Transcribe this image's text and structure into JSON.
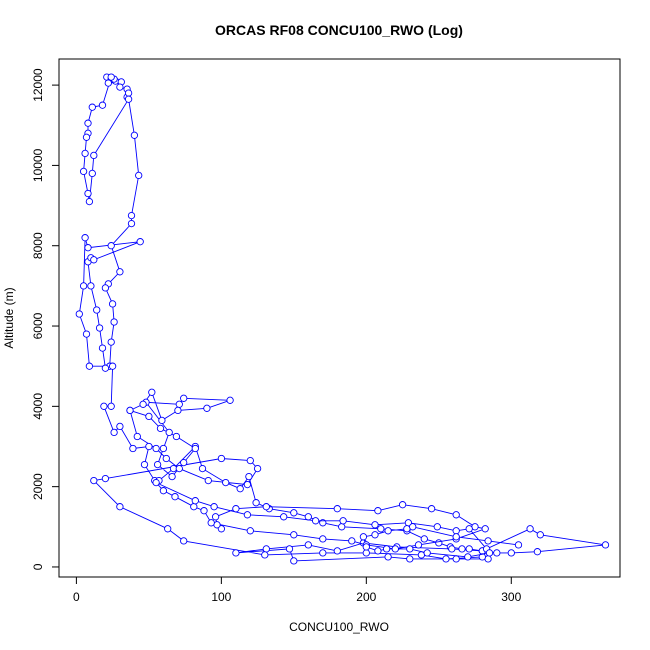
{
  "chart_data": {
    "type": "line",
    "title": "ORCAS RF08 CONCU100_RWO (Log)",
    "xlabel": "CONCU100_RWO",
    "ylabel": "Altitude (m)",
    "xlim": [
      -12,
      375
    ],
    "ylim": [
      -250,
      12650
    ],
    "xticks": [
      0,
      100,
      200,
      300
    ],
    "yticks": [
      0,
      2000,
      4000,
      6000,
      8000,
      10000,
      12000
    ],
    "grid": false,
    "color": "#0000ff",
    "series": [
      {
        "points": [
          [
            21,
            12200
          ],
          [
            24,
            12150
          ],
          [
            27,
            12100
          ],
          [
            22,
            12050
          ],
          [
            31,
            12080
          ],
          [
            30,
            11950
          ],
          [
            35,
            11900
          ],
          [
            35,
            11700
          ],
          [
            36,
            11800
          ],
          [
            26,
            12150
          ],
          [
            24,
            12200
          ],
          [
            18,
            11500
          ],
          [
            11,
            11450
          ],
          [
            8,
            11050
          ],
          [
            8,
            10800
          ],
          [
            7,
            10700
          ],
          [
            6,
            10300
          ],
          [
            5,
            9850
          ],
          [
            8,
            9300
          ],
          [
            9,
            9100
          ],
          [
            11,
            9800
          ],
          [
            12,
            10250
          ],
          [
            36,
            11650
          ],
          [
            40,
            10750
          ],
          [
            43,
            9750
          ],
          [
            38,
            8750
          ],
          [
            38,
            8550
          ],
          [
            24,
            8000
          ],
          [
            30,
            7350
          ],
          [
            22,
            7050
          ],
          [
            20,
            6950
          ],
          [
            25,
            6550
          ],
          [
            26,
            6100
          ],
          [
            24,
            5600
          ],
          [
            23,
            5000
          ],
          [
            20,
            4950
          ],
          [
            18,
            5450
          ],
          [
            16,
            5950
          ],
          [
            14,
            6400
          ],
          [
            10,
            7000
          ],
          [
            8,
            7600
          ],
          [
            10,
            7700
          ],
          [
            12,
            7650
          ],
          [
            44,
            8100
          ],
          [
            8,
            7950
          ],
          [
            6,
            8200
          ],
          [
            5,
            7000
          ],
          [
            2,
            6300
          ],
          [
            7,
            5800
          ],
          [
            9,
            5000
          ],
          [
            25,
            5000
          ],
          [
            24,
            4000
          ],
          [
            19,
            4000
          ],
          [
            26,
            3350
          ],
          [
            30,
            3500
          ],
          [
            39,
            2950
          ],
          [
            50,
            3000
          ],
          [
            47,
            2550
          ],
          [
            54,
            2150
          ],
          [
            57,
            2150
          ],
          [
            67,
            2450
          ],
          [
            82,
            3000
          ],
          [
            87,
            2450
          ],
          [
            103,
            2100
          ],
          [
            113,
            1950
          ],
          [
            119,
            2250
          ],
          [
            124,
            1600
          ],
          [
            133,
            1450
          ],
          [
            150,
            1350
          ],
          [
            160,
            1250
          ],
          [
            170,
            1100
          ],
          [
            183,
            1000
          ],
          [
            210,
            950
          ],
          [
            228,
            900
          ],
          [
            240,
            700
          ],
          [
            250,
            600
          ],
          [
            258,
            500
          ],
          [
            266,
            450
          ],
          [
            271,
            450
          ],
          [
            280,
            400
          ],
          [
            290,
            350
          ],
          [
            300,
            350
          ],
          [
            318,
            380
          ],
          [
            365,
            550
          ],
          [
            320,
            800
          ],
          [
            313,
            950
          ],
          [
            280,
            400
          ],
          [
            259,
            450
          ],
          [
            221,
            500
          ],
          [
            198,
            600
          ],
          [
            180,
            400
          ],
          [
            160,
            550
          ],
          [
            131,
            450
          ],
          [
            110,
            350
          ],
          [
            147,
            450
          ],
          [
            150,
            150
          ],
          [
            215,
            250
          ],
          [
            230,
            200
          ],
          [
            262,
            200
          ],
          [
            284,
            200
          ],
          [
            280,
            250
          ],
          [
            255,
            200
          ],
          [
            238,
            300
          ],
          [
            200,
            350
          ],
          [
            170,
            350
          ],
          [
            130,
            300
          ],
          [
            74,
            650
          ],
          [
            63,
            950
          ],
          [
            30,
            1500
          ],
          [
            12,
            2150
          ],
          [
            20,
            2200
          ],
          [
            100,
            2700
          ],
          [
            120,
            2650
          ],
          [
            125,
            2450
          ],
          [
            118,
            2050
          ],
          [
            91,
            2150
          ],
          [
            71,
            2450
          ],
          [
            62,
            2700
          ],
          [
            55,
            2950
          ],
          [
            42,
            3250
          ],
          [
            37,
            3900
          ],
          [
            50,
            3750
          ],
          [
            58,
            3450
          ],
          [
            69,
            3250
          ],
          [
            82,
            2950
          ],
          [
            74,
            2600
          ],
          [
            66,
            2250
          ],
          [
            56,
            2550
          ],
          [
            60,
            2950
          ],
          [
            64,
            3350
          ],
          [
            48,
            4100
          ],
          [
            71,
            4050
          ],
          [
            74,
            4200
          ],
          [
            106,
            4150
          ],
          [
            90,
            3950
          ],
          [
            70,
            3900
          ],
          [
            59,
            3650
          ],
          [
            52,
            4350
          ],
          [
            46,
            4050
          ],
          [
            37,
            3900
          ]
        ]
      },
      {
        "points": [
          [
            100,
            950
          ],
          [
            97,
            1050
          ],
          [
            96,
            1250
          ],
          [
            110,
            1450
          ],
          [
            131,
            1500
          ],
          [
            180,
            1450
          ],
          [
            208,
            1400
          ],
          [
            225,
            1550
          ],
          [
            245,
            1450
          ],
          [
            262,
            1300
          ],
          [
            275,
            1000
          ],
          [
            282,
            950
          ],
          [
            262,
            700
          ],
          [
            236,
            550
          ],
          [
            220,
            450
          ],
          [
            200,
            550
          ],
          [
            190,
            650
          ],
          [
            170,
            700
          ],
          [
            150,
            800
          ],
          [
            120,
            900
          ],
          [
            93,
            1100
          ],
          [
            88,
            1400
          ],
          [
            81,
            1500
          ],
          [
            68,
            1750
          ],
          [
            60,
            1900
          ],
          [
            55,
            2100
          ],
          [
            82,
            1650
          ],
          [
            95,
            1500
          ],
          [
            118,
            1300
          ],
          [
            143,
            1250
          ],
          [
            165,
            1150
          ],
          [
            184,
            1150
          ],
          [
            206,
            1050
          ],
          [
            229,
            1100
          ],
          [
            249,
            1000
          ],
          [
            262,
            900
          ],
          [
            271,
            950
          ],
          [
            283,
            450
          ],
          [
            285,
            350
          ],
          [
            270,
            250
          ],
          [
            242,
            350
          ],
          [
            230,
            450
          ],
          [
            214,
            450
          ],
          [
            208,
            400
          ],
          [
            200,
            500
          ],
          [
            198,
            750
          ],
          [
            206,
            800
          ],
          [
            215,
            900
          ],
          [
            228,
            950
          ],
          [
            232,
            1000
          ],
          [
            262,
            750
          ],
          [
            284,
            650
          ],
          [
            305,
            550
          ]
        ]
      }
    ]
  }
}
